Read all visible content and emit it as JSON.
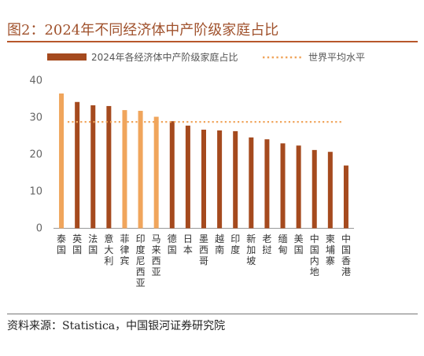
{
  "header": {
    "title": "图2：2024年不同经济体中产阶级家庭占比"
  },
  "footer": {
    "source": "资料来源：Statistica，中国银河证券研究院"
  },
  "colors": {
    "bar_dark": "#a54a1e",
    "bar_light": "#f0a55c",
    "reference_line": "#f0a55c",
    "axis": "#999999"
  },
  "chart_data": {
    "type": "bar",
    "categories": [
      "泰国",
      "英国",
      "法国",
      "意大利",
      "菲律宾",
      "印度尼西亚",
      "马来西亚",
      "德国",
      "日本",
      "墨西哥",
      "越南",
      "印度",
      "新加坡",
      "老挝",
      "缅甸",
      "美国",
      "中国内地",
      "柬埔寨",
      "中国香港"
    ],
    "series": [
      {
        "name": "2024年各经济体中产阶级家庭占比",
        "values": [
          36.5,
          34.2,
          33.3,
          33.1,
          32.0,
          31.8,
          30.2,
          29.0,
          27.8,
          26.7,
          26.5,
          26.3,
          24.6,
          24.1,
          23.0,
          22.4,
          21.2,
          20.7,
          17.0
        ],
        "highlight": [
          "light",
          "dark",
          "dark",
          "dark",
          "light",
          "light",
          "light",
          "dark",
          "dark",
          "dark",
          "dark",
          "dark",
          "dark",
          "dark",
          "dark",
          "dark",
          "dark",
          "dark",
          "dark"
        ]
      }
    ],
    "reference_line": {
      "name": "世界平均水平",
      "value": 28.8
    },
    "ylim": [
      0,
      40
    ],
    "yticks": [
      0,
      10,
      20,
      30,
      40
    ],
    "legend": "top",
    "grid": false,
    "xlabel": "",
    "ylabel": ""
  }
}
